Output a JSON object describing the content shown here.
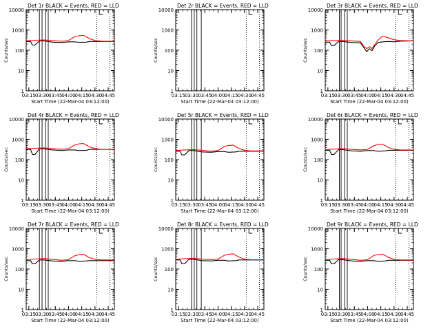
{
  "figure": {
    "x_tick_labels": [
      "03:15",
      "03:30",
      "03:45",
      "04:00",
      "04:15",
      "04:30",
      "04:45"
    ],
    "y_tick_labels": [
      "1",
      "10",
      "100",
      "1000",
      "10000"
    ],
    "ylabel": "Counts/sec",
    "xlabel": "Start Time (22-Mar-04 03:12:00)"
  },
  "chart_data": [
    {
      "type": "line",
      "title": "Det 1r BLACK = Events, RED = LLD",
      "xlabel": "Start Time (22-Mar-04 03:12:00)",
      "ylabel": "Counts/sec",
      "y_scale": "log",
      "ylim": [
        1,
        10000
      ],
      "x_ticks": [
        "03:15",
        "03:30",
        "03:45",
        "04:00",
        "04:15",
        "04:30",
        "04:45"
      ],
      "x_ticks_min": [
        3,
        18,
        33,
        48,
        63,
        78,
        93
      ],
      "series": [
        {
          "name": "Events",
          "color": "#000000",
          "x": [
            0,
            5,
            7,
            10,
            15,
            20,
            30,
            40,
            48,
            55,
            60,
            68,
            72,
            78,
            85,
            93,
            100
          ],
          "y": [
            270,
            270,
            180,
            180,
            290,
            290,
            250,
            240,
            260,
            260,
            245,
            250,
            270,
            270,
            270,
            270,
            270
          ]
        },
        {
          "name": "LLD",
          "color": "#ff0000",
          "x": [
            0,
            10,
            20,
            30,
            40,
            48,
            55,
            60,
            65,
            72,
            78,
            85,
            100
          ],
          "y": [
            295,
            310,
            320,
            300,
            275,
            300,
            460,
            520,
            540,
            370,
            300,
            280,
            275
          ]
        }
      ],
      "vlines_solid_min": [
        15,
        18,
        22,
        25
      ],
      "vlines_dotted_min": [
        80,
        95
      ],
      "marker_min": 83
    },
    {
      "type": "line",
      "title": "Det 2r BLACK = Events, RED = LLD",
      "xlabel": "Start Time (22-Mar-04 03:12:00)",
      "ylabel": "Counts/sec",
      "y_scale": "log",
      "ylim": [
        1,
        10000
      ],
      "x_ticks": [
        "03:15",
        "03:30",
        "03:45",
        "04:00",
        "04:15",
        "04:30",
        "04:45"
      ],
      "x_ticks_min": [
        3,
        18,
        33,
        48,
        63,
        78,
        93
      ],
      "series": [],
      "vlines_solid_min": [
        18,
        21,
        24,
        29
      ],
      "vlines_dotted_min": [
        80,
        95
      ],
      "marker_min": 83
    },
    {
      "type": "line",
      "title": "Det 3r BLACK = Events, RED = LLD",
      "xlabel": "Start Time (22-Mar-04 03:12:00)",
      "ylabel": "Counts/sec",
      "y_scale": "log",
      "ylim": [
        1,
        10000
      ],
      "x_ticks": [
        "03:15",
        "03:30",
        "03:45",
        "04:00",
        "04:15",
        "04:30",
        "04:45"
      ],
      "x_ticks_min": [
        3,
        18,
        33,
        48,
        63,
        78,
        93
      ],
      "series": [
        {
          "name": "Events",
          "color": "#000000",
          "x": [
            0,
            5,
            7,
            10,
            15,
            20,
            30,
            40,
            44,
            47,
            50,
            53,
            56,
            60,
            65,
            72,
            78,
            85,
            100
          ],
          "y": [
            250,
            250,
            170,
            170,
            270,
            270,
            240,
            230,
            130,
            85,
            120,
            95,
            160,
            240,
            260,
            270,
            260,
            280,
            290
          ]
        },
        {
          "name": "LLD",
          "color": "#ff0000",
          "x": [
            0,
            10,
            20,
            30,
            40,
            44,
            47,
            50,
            53,
            56,
            60,
            65,
            72,
            78,
            85,
            100
          ],
          "y": [
            290,
            300,
            310,
            290,
            270,
            150,
            120,
            150,
            120,
            190,
            320,
            500,
            400,
            330,
            300,
            290
          ]
        }
      ],
      "vlines_solid_min": [
        16,
        18,
        22,
        25
      ],
      "vlines_dotted_min": [
        80,
        95
      ],
      "marker_min": 83
    },
    {
      "type": "line",
      "title": "Det 4r BLACK = Events, RED = LLD",
      "xlabel": "Start Time (22-Mar-04 03:12:00)",
      "ylabel": "Counts/sec",
      "y_scale": "log",
      "ylim": [
        1,
        10000
      ],
      "x_ticks": [
        "03:15",
        "03:30",
        "03:45",
        "04:00",
        "04:15",
        "04:30",
        "04:45"
      ],
      "x_ticks_min": [
        3,
        18,
        33,
        48,
        63,
        78,
        93
      ],
      "series": [
        {
          "name": "Events",
          "color": "#000000",
          "x": [
            0,
            5,
            7,
            10,
            15,
            20,
            30,
            40,
            48,
            55,
            60,
            68,
            72,
            78,
            85,
            93,
            100
          ],
          "y": [
            320,
            320,
            180,
            180,
            340,
            340,
            300,
            280,
            300,
            300,
            280,
            290,
            320,
            320,
            320,
            320,
            320
          ]
        },
        {
          "name": "LLD",
          "color": "#ff0000",
          "x": [
            0,
            10,
            20,
            30,
            40,
            48,
            55,
            60,
            65,
            72,
            78,
            85,
            100
          ],
          "y": [
            340,
            360,
            380,
            350,
            320,
            350,
            520,
            600,
            620,
            420,
            350,
            320,
            320
          ]
        }
      ],
      "vlines_solid_min": [
        15,
        18,
        22,
        25
      ],
      "vlines_dotted_min": [
        80,
        95
      ],
      "marker_min": 83
    },
    {
      "type": "line",
      "title": "Det 5r BLACK = Events, RED = LLD",
      "xlabel": "Start Time (22-Mar-04 03:12:00)",
      "ylabel": "Counts/sec",
      "y_scale": "log",
      "ylim": [
        1,
        10000
      ],
      "x_ticks": [
        "03:15",
        "03:30",
        "03:45",
        "04:00",
        "04:15",
        "04:30",
        "04:45"
      ],
      "x_ticks_min": [
        3,
        18,
        33,
        48,
        63,
        78,
        93
      ],
      "series": [
        {
          "name": "Events",
          "color": "#000000",
          "x": [
            0,
            5,
            7,
            10,
            15,
            20,
            30,
            40,
            48,
            55,
            60,
            68,
            72,
            78,
            85,
            93,
            100
          ],
          "y": [
            260,
            260,
            170,
            170,
            280,
            280,
            240,
            230,
            250,
            250,
            230,
            240,
            260,
            260,
            260,
            260,
            260
          ]
        },
        {
          "name": "LLD",
          "color": "#ff0000",
          "x": [
            0,
            10,
            20,
            30,
            40,
            48,
            55,
            60,
            65,
            72,
            78,
            85,
            100
          ],
          "y": [
            280,
            300,
            310,
            290,
            260,
            280,
            440,
            500,
            520,
            350,
            290,
            270,
            270
          ]
        }
      ],
      "vlines_solid_min": [
        18,
        21,
        24,
        29
      ],
      "vlines_dotted_min": [
        80,
        95
      ],
      "marker_min": 83
    },
    {
      "type": "line",
      "title": "Det 6r BLACK = Events, RED = LLD",
      "xlabel": "Start Time (22-Mar-04 03:12:00)",
      "ylabel": "Counts/sec",
      "y_scale": "log",
      "ylim": [
        1,
        10000
      ],
      "x_ticks": [
        "03:15",
        "03:30",
        "03:45",
        "04:00",
        "04:15",
        "04:30",
        "04:45"
      ],
      "x_ticks_min": [
        3,
        18,
        33,
        48,
        63,
        78,
        93
      ],
      "series": [
        {
          "name": "Events",
          "color": "#000000",
          "x": [
            0,
            5,
            7,
            10,
            15,
            20,
            30,
            40,
            48,
            55,
            60,
            68,
            72,
            78,
            85,
            93,
            100
          ],
          "y": [
            290,
            290,
            180,
            180,
            310,
            310,
            270,
            260,
            280,
            280,
            260,
            270,
            290,
            290,
            290,
            290,
            290
          ]
        },
        {
          "name": "LLD",
          "color": "#ff0000",
          "x": [
            0,
            10,
            20,
            30,
            40,
            48,
            55,
            60,
            65,
            72,
            78,
            85,
            100
          ],
          "y": [
            310,
            330,
            350,
            320,
            300,
            320,
            480,
            560,
            580,
            390,
            320,
            300,
            300
          ]
        }
      ],
      "vlines_solid_min": [
        16,
        18,
        22,
        25
      ],
      "vlines_dotted_min": [
        80,
        95
      ],
      "marker_min": 83
    },
    {
      "type": "line",
      "title": "Det 7r BLACK = Events, RED = LLD",
      "xlabel": "Start Time (22-Mar-04 03:12:00)",
      "ylabel": "Counts/sec",
      "y_scale": "log",
      "ylim": [
        1,
        10000
      ],
      "x_ticks": [
        "03:15",
        "03:30",
        "03:45",
        "04:00",
        "04:15",
        "04:30",
        "04:45"
      ],
      "x_ticks_min": [
        3,
        18,
        33,
        48,
        63,
        78,
        93
      ],
      "series": [
        {
          "name": "Events",
          "color": "#000000",
          "x": [
            0,
            5,
            7,
            10,
            15,
            20,
            30,
            40,
            48,
            55,
            60,
            68,
            72,
            78,
            85,
            93,
            100
          ],
          "y": [
            260,
            260,
            180,
            180,
            280,
            280,
            250,
            240,
            260,
            260,
            240,
            250,
            260,
            260,
            260,
            260,
            260
          ]
        },
        {
          "name": "LLD",
          "color": "#ff0000",
          "x": [
            0,
            10,
            20,
            30,
            40,
            48,
            55,
            60,
            65,
            72,
            78,
            85,
            100
          ],
          "y": [
            290,
            310,
            330,
            300,
            270,
            290,
            450,
            510,
            530,
            360,
            300,
            280,
            280
          ]
        }
      ],
      "vlines_solid_min": [
        15,
        18,
        22,
        25
      ],
      "vlines_dotted_min": [
        80,
        95
      ],
      "marker_min": 83
    },
    {
      "type": "line",
      "title": "Det 8r BLACK = Events, RED = LLD",
      "xlabel": "Start Time (22-Mar-04 03:12:00)",
      "ylabel": "Counts/sec",
      "y_scale": "log",
      "ylim": [
        1,
        10000
      ],
      "x_ticks": [
        "03:15",
        "03:30",
        "03:45",
        "04:00",
        "04:15",
        "04:30",
        "04:45"
      ],
      "x_ticks_min": [
        3,
        18,
        33,
        48,
        63,
        78,
        93
      ],
      "series": [
        {
          "name": "Events",
          "color": "#000000",
          "x": [
            0,
            5,
            7,
            10,
            15,
            20,
            30,
            40,
            48,
            55,
            60,
            68,
            72,
            78,
            85,
            93,
            100
          ],
          "y": [
            280,
            280,
            180,
            180,
            300,
            300,
            260,
            250,
            270,
            270,
            250,
            260,
            280,
            280,
            280,
            280,
            280
          ]
        },
        {
          "name": "LLD",
          "color": "#ff0000",
          "x": [
            0,
            10,
            20,
            30,
            40,
            48,
            55,
            60,
            65,
            72,
            78,
            85,
            100
          ],
          "y": [
            300,
            320,
            340,
            310,
            290,
            310,
            470,
            540,
            560,
            380,
            310,
            290,
            290
          ]
        }
      ],
      "vlines_solid_min": [
        18,
        21,
        24,
        29
      ],
      "vlines_dotted_min": [
        80,
        95
      ],
      "marker_min": 83
    },
    {
      "type": "line",
      "title": "Det 9r BLACK = Events, RED = LLD",
      "xlabel": "Start Time (22-Mar-04 03:12:00)",
      "ylabel": "Counts/sec",
      "y_scale": "log",
      "ylim": [
        1,
        10000
      ],
      "x_ticks": [
        "03:15",
        "03:30",
        "03:45",
        "04:00",
        "04:15",
        "04:30",
        "04:45"
      ],
      "x_ticks_min": [
        3,
        18,
        33,
        48,
        63,
        78,
        93
      ],
      "series": [
        {
          "name": "Events",
          "color": "#000000",
          "x": [
            0,
            5,
            7,
            10,
            15,
            20,
            30,
            40,
            48,
            55,
            60,
            68,
            72,
            78,
            85,
            93,
            100
          ],
          "y": [
            270,
            270,
            180,
            180,
            290,
            290,
            250,
            240,
            260,
            260,
            240,
            250,
            270,
            270,
            270,
            270,
            270
          ]
        },
        {
          "name": "LLD",
          "color": "#ff0000",
          "x": [
            0,
            10,
            20,
            30,
            40,
            48,
            55,
            60,
            65,
            72,
            78,
            85,
            100
          ],
          "y": [
            290,
            310,
            330,
            300,
            270,
            290,
            460,
            520,
            540,
            370,
            300,
            280,
            280
          ]
        }
      ],
      "vlines_solid_min": [
        16,
        18,
        22,
        25
      ],
      "vlines_dotted_min": [
        80,
        95
      ],
      "marker_min": 83
    }
  ]
}
